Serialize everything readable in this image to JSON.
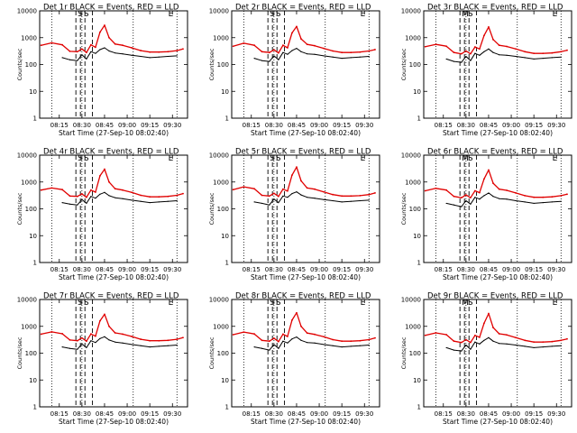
{
  "colors": {
    "events": "#000000",
    "lld": "#e00000",
    "frame": "#000000",
    "background": "#ffffff"
  },
  "shared": {
    "ylabel": "Counts/sec",
    "xlabel": "Start Time (27-Sep-10 08:02:40)",
    "xticks": [
      "08:15",
      "08:30",
      "08:45",
      "09:00",
      "09:15",
      "09:30"
    ],
    "yticks": [
      "1",
      "10",
      "100",
      "1000",
      "10000"
    ]
  },
  "chart_data": [
    {
      "type": "line",
      "title": "Det 1r BLACK = Events, RED = LLD",
      "markers": [
        "S",
        "S",
        "E"
      ],
      "ylog": true,
      "ylim": [
        1,
        10000
      ],
      "x": [
        "08:03",
        "08:10",
        "08:17",
        "08:22",
        "08:27",
        "08:30",
        "08:33",
        "08:36",
        "08:39",
        "08:42",
        "08:45",
        "08:48",
        "08:52",
        "08:57",
        "09:03",
        "09:09",
        "09:15",
        "09:21",
        "09:27",
        "09:33",
        "09:37"
      ],
      "series": [
        {
          "name": "RED = LLD",
          "values": [
            520,
            640,
            540,
            310,
            300,
            380,
            280,
            540,
            440,
            1600,
            2900,
            1000,
            580,
            520,
            420,
            330,
            290,
            290,
            300,
            330,
            380
          ]
        },
        {
          "name": "BLACK = Events",
          "values": [
            null,
            null,
            180,
            150,
            140,
            230,
            160,
            300,
            260,
            360,
            420,
            320,
            270,
            250,
            220,
            200,
            180,
            190,
            200,
            210,
            null
          ]
        }
      ]
    },
    {
      "type": "line",
      "title": "Det 2r BLACK = Events, RED = LLD",
      "markers": [
        "S",
        "S",
        "E"
      ],
      "ylog": true,
      "ylim": [
        1,
        10000
      ],
      "x": [
        "08:03",
        "08:10",
        "08:17",
        "08:22",
        "08:27",
        "08:30",
        "08:33",
        "08:36",
        "08:39",
        "08:42",
        "08:45",
        "08:48",
        "08:52",
        "08:57",
        "09:03",
        "09:09",
        "09:15",
        "09:21",
        "09:27",
        "09:33",
        "09:37"
      ],
      "series": [
        {
          "name": "RED = LLD",
          "values": [
            480,
            620,
            520,
            300,
            280,
            350,
            270,
            520,
            420,
            1500,
            2600,
            900,
            560,
            500,
            400,
            320,
            280,
            280,
            290,
            320,
            360
          ]
        },
        {
          "name": "BLACK = Events",
          "values": [
            null,
            null,
            170,
            140,
            130,
            210,
            150,
            280,
            240,
            330,
            400,
            300,
            250,
            240,
            210,
            190,
            170,
            180,
            190,
            200,
            null
          ]
        }
      ]
    },
    {
      "type": "line",
      "title": "Det 3r BLACK = Events, RED = LLD",
      "markers": [
        "M",
        "S",
        "E"
      ],
      "ylog": true,
      "ylim": [
        1,
        10000
      ],
      "x": [
        "08:03",
        "08:10",
        "08:17",
        "08:22",
        "08:27",
        "08:30",
        "08:33",
        "08:36",
        "08:39",
        "08:42",
        "08:45",
        "08:48",
        "08:52",
        "08:57",
        "09:03",
        "09:09",
        "09:15",
        "09:21",
        "09:27",
        "09:33",
        "09:37"
      ],
      "series": [
        {
          "name": "RED = LLD",
          "values": [
            460,
            560,
            480,
            280,
            250,
            320,
            250,
            450,
            380,
            1200,
            2500,
            850,
            520,
            470,
            380,
            300,
            260,
            260,
            270,
            300,
            340
          ]
        },
        {
          "name": "BLACK = Events",
          "values": [
            null,
            null,
            160,
            130,
            120,
            200,
            140,
            260,
            220,
            300,
            380,
            280,
            230,
            220,
            200,
            180,
            160,
            170,
            180,
            190,
            null
          ]
        }
      ]
    },
    {
      "type": "line",
      "title": "Det 4r BLACK = Events, RED = LLD",
      "markers": [
        "S",
        "S",
        "E"
      ],
      "ylog": true,
      "ylim": [
        1,
        10000
      ],
      "x": [
        "08:03",
        "08:10",
        "08:17",
        "08:22",
        "08:27",
        "08:30",
        "08:33",
        "08:36",
        "08:39",
        "08:42",
        "08:45",
        "08:48",
        "08:52",
        "08:57",
        "09:03",
        "09:09",
        "09:15",
        "09:21",
        "09:27",
        "09:33",
        "09:37"
      ],
      "series": [
        {
          "name": "RED = LLD",
          "values": [
            500,
            600,
            520,
            300,
            290,
            360,
            270,
            500,
            420,
            1700,
            3000,
            1000,
            560,
            500,
            410,
            320,
            280,
            280,
            290,
            320,
            370
          ]
        },
        {
          "name": "BLACK = Events",
          "values": [
            null,
            null,
            170,
            150,
            140,
            220,
            160,
            290,
            250,
            350,
            410,
            310,
            260,
            240,
            210,
            190,
            170,
            180,
            190,
            200,
            null
          ]
        }
      ]
    },
    {
      "type": "line",
      "title": "Det 5r BLACK = Events, RED = LLD",
      "markers": [
        "S",
        "S",
        "E"
      ],
      "ylog": true,
      "ylim": [
        1,
        10000
      ],
      "x": [
        "08:03",
        "08:10",
        "08:17",
        "08:22",
        "08:27",
        "08:30",
        "08:33",
        "08:36",
        "08:39",
        "08:42",
        "08:45",
        "08:48",
        "08:52",
        "08:57",
        "09:03",
        "09:09",
        "09:15",
        "09:21",
        "09:27",
        "09:33",
        "09:37"
      ],
      "series": [
        {
          "name": "RED = LLD",
          "values": [
            520,
            660,
            560,
            320,
            300,
            380,
            290,
            540,
            460,
            1800,
            3600,
            1100,
            600,
            540,
            430,
            340,
            300,
            300,
            310,
            340,
            390
          ]
        },
        {
          "name": "BLACK = Events",
          "values": [
            null,
            null,
            180,
            160,
            140,
            230,
            170,
            300,
            270,
            370,
            430,
            330,
            270,
            250,
            220,
            200,
            180,
            190,
            200,
            210,
            null
          ]
        }
      ]
    },
    {
      "type": "line",
      "title": "Det 6r BLACK = Events, RED = LLD",
      "markers": [
        "M",
        "S",
        "E"
      ],
      "ylog": true,
      "ylim": [
        1,
        10000
      ],
      "x": [
        "08:03",
        "08:10",
        "08:17",
        "08:22",
        "08:27",
        "08:30",
        "08:33",
        "08:36",
        "08:39",
        "08:42",
        "08:45",
        "08:48",
        "08:52",
        "08:57",
        "09:03",
        "09:09",
        "09:15",
        "09:21",
        "09:27",
        "09:33",
        "09:37"
      ],
      "series": [
        {
          "name": "RED = LLD",
          "values": [
            470,
            580,
            500,
            290,
            260,
            330,
            260,
            470,
            400,
            1300,
            2800,
            900,
            540,
            490,
            390,
            310,
            270,
            270,
            280,
            310,
            350
          ]
        },
        {
          "name": "BLACK = Events",
          "values": [
            null,
            null,
            160,
            140,
            120,
            200,
            150,
            270,
            230,
            310,
            390,
            290,
            240,
            230,
            200,
            180,
            160,
            170,
            180,
            190,
            null
          ]
        }
      ]
    },
    {
      "type": "line",
      "title": "Det 7r BLACK = Events, RED = LLD",
      "markers": [
        "S",
        "S",
        "E"
      ],
      "ylog": true,
      "ylim": [
        1,
        10000
      ],
      "x": [
        "08:03",
        "08:10",
        "08:17",
        "08:22",
        "08:27",
        "08:30",
        "08:33",
        "08:36",
        "08:39",
        "08:42",
        "08:45",
        "08:48",
        "08:52",
        "08:57",
        "09:03",
        "09:09",
        "09:15",
        "09:21",
        "09:27",
        "09:33",
        "09:37"
      ],
      "series": [
        {
          "name": "RED = LLD",
          "values": [
            510,
            620,
            530,
            310,
            290,
            370,
            280,
            520,
            430,
            1600,
            2800,
            1000,
            570,
            510,
            420,
            330,
            290,
            290,
            300,
            330,
            380
          ]
        },
        {
          "name": "BLACK = Events",
          "values": [
            null,
            null,
            170,
            150,
            140,
            220,
            160,
            290,
            250,
            350,
            410,
            310,
            260,
            240,
            210,
            190,
            170,
            180,
            190,
            200,
            null
          ]
        }
      ]
    },
    {
      "type": "line",
      "title": "Det 8r BLACK = Events, RED = LLD",
      "markers": [
        "S",
        "S",
        "E"
      ],
      "ylog": true,
      "ylim": [
        1,
        10000
      ],
      "x": [
        "08:03",
        "08:10",
        "08:17",
        "08:22",
        "08:27",
        "08:30",
        "08:33",
        "08:36",
        "08:39",
        "08:42",
        "08:45",
        "08:48",
        "08:52",
        "08:57",
        "09:03",
        "09:09",
        "09:15",
        "09:21",
        "09:27",
        "09:33",
        "09:37"
      ],
      "series": [
        {
          "name": "RED = LLD",
          "values": [
            490,
            610,
            520,
            300,
            280,
            360,
            270,
            510,
            420,
            1700,
            3200,
            1000,
            560,
            500,
            410,
            320,
            280,
            280,
            290,
            320,
            370
          ]
        },
        {
          "name": "BLACK = Events",
          "values": [
            null,
            null,
            170,
            150,
            130,
            210,
            150,
            280,
            240,
            340,
            400,
            300,
            250,
            240,
            210,
            190,
            170,
            180,
            190,
            200,
            null
          ]
        }
      ]
    },
    {
      "type": "line",
      "title": "Det 9r BLACK = Events, RED = LLD",
      "markers": [
        "M",
        "S",
        "E"
      ],
      "ylog": true,
      "ylim": [
        1,
        10000
      ],
      "x": [
        "08:03",
        "08:10",
        "08:17",
        "08:22",
        "08:27",
        "08:30",
        "08:33",
        "08:36",
        "08:39",
        "08:42",
        "08:45",
        "08:48",
        "08:52",
        "08:57",
        "09:03",
        "09:09",
        "09:15",
        "09:21",
        "09:27",
        "09:33",
        "09:37"
      ],
      "series": [
        {
          "name": "RED = LLD",
          "values": [
            460,
            570,
            490,
            280,
            250,
            320,
            250,
            460,
            390,
            1300,
            3000,
            900,
            530,
            480,
            380,
            300,
            260,
            260,
            270,
            300,
            340
          ]
        },
        {
          "name": "BLACK = Events",
          "values": [
            null,
            null,
            160,
            130,
            120,
            200,
            140,
            260,
            220,
            300,
            380,
            280,
            230,
            220,
            200,
            180,
            160,
            170,
            180,
            190,
            null
          ]
        }
      ]
    }
  ]
}
